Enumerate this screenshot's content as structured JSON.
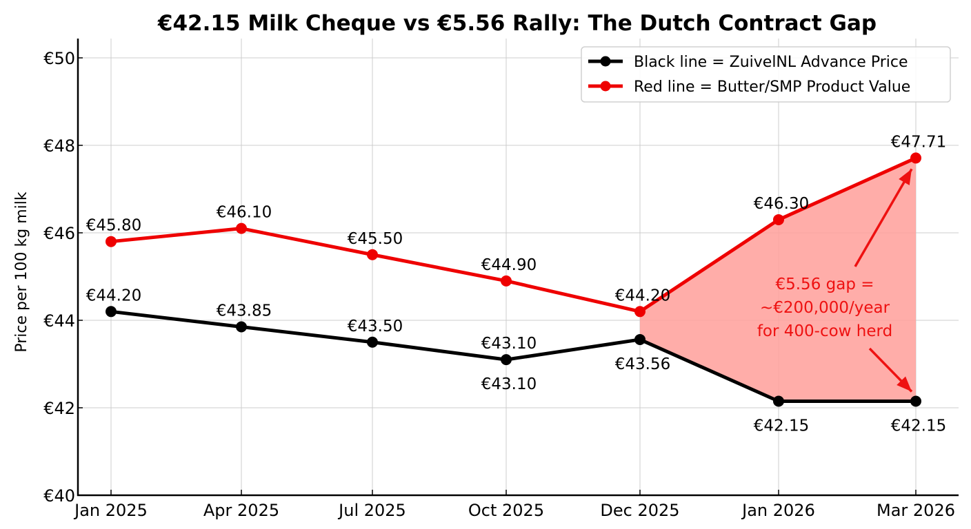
{
  "chart_data": {
    "type": "line",
    "title": "€42.15 Milk Cheque vs €5.56 Rally: The Dutch Contract Gap",
    "xlabel": "",
    "ylabel": "Price per 100 kg milk",
    "ylim": [
      40,
      50
    ],
    "yticks": [
      40,
      42,
      44,
      46,
      48,
      50
    ],
    "ytick_labels": [
      "€40",
      "€42",
      "€44",
      "€46",
      "€48",
      "€50"
    ],
    "categories": [
      "Jan 2025",
      "Apr 2025",
      "Jul 2025",
      "Oct 2025",
      "Dec 2025",
      "Jan 2026",
      "Mar 2026"
    ],
    "category_months": [
      0,
      3,
      6,
      9,
      11,
      12,
      14
    ],
    "grid": true,
    "legend_position": "top-right",
    "series": [
      {
        "name": "Black line = ZuivelNL Advance Price",
        "color": "#000000",
        "values": [
          44.2,
          43.85,
          43.5,
          43.1,
          43.56,
          42.15,
          42.15
        ],
        "labels": [
          "€44.20",
          "€43.85",
          "€43.50",
          "€43.10",
          "€43.56",
          "€42.15",
          "€42.15"
        ],
        "label_positions": [
          "above",
          "above",
          "above",
          "both",
          "below",
          "below",
          "below"
        ],
        "extra_label": "€43.10"
      },
      {
        "name": "Red line = Butter/SMP Product Value",
        "color": "#ee0000",
        "values": [
          45.8,
          46.1,
          45.5,
          44.9,
          44.2,
          46.3,
          47.71
        ],
        "labels": [
          "€45.80",
          "€46.10",
          "€45.50",
          "€44.90",
          "€44.20",
          "€46.30",
          "€47.71"
        ],
        "label_positions": [
          "above",
          "above",
          "above",
          "above",
          "above",
          "above",
          "above"
        ]
      }
    ],
    "shaded_gap": {
      "from_category": "Dec 2025",
      "to_category": "Mar 2026",
      "color": "#ff9f9a"
    },
    "annotation": {
      "lines": [
        "€5.56 gap =",
        "~€200,000/year",
        "for 400-cow herd"
      ],
      "color": "#ee1111",
      "arrows_to": [
        "Mar 2026 red point",
        "Mar 2026 black point"
      ]
    }
  }
}
